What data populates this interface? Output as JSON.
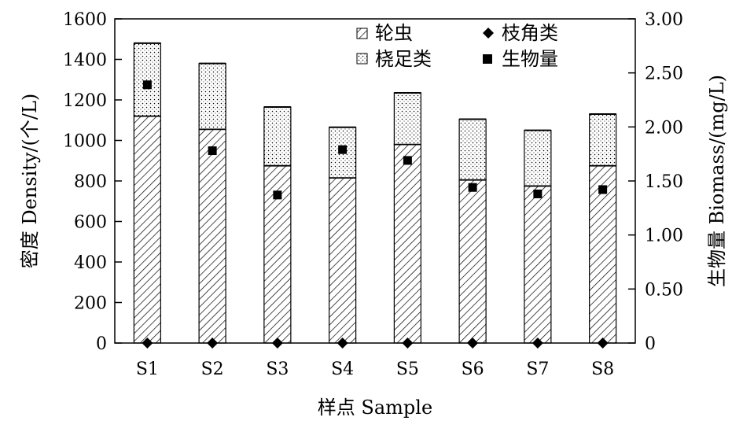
{
  "chart_data": {
    "type": "bar",
    "stacked": true,
    "categories": [
      "S1",
      "S2",
      "S3",
      "S4",
      "S5",
      "S6",
      "S7",
      "S8"
    ],
    "series": [
      {
        "name": "轮虫",
        "kind": "bar",
        "axis": "left",
        "pattern": "hatch",
        "values": [
          1120,
          1055,
          875,
          815,
          980,
          805,
          775,
          875
        ]
      },
      {
        "name": "桡足类",
        "kind": "bar",
        "axis": "left",
        "pattern": "dots",
        "values": [
          360,
          325,
          290,
          250,
          255,
          300,
          275,
          255
        ]
      },
      {
        "name": "枝角类",
        "kind": "marker",
        "marker": "diamond",
        "axis": "left",
        "values": [
          0,
          0,
          0,
          0,
          0,
          0,
          0,
          0
        ]
      },
      {
        "name": "生物量",
        "kind": "marker",
        "marker": "square",
        "axis": "right",
        "values": [
          2.39,
          1.78,
          1.37,
          1.79,
          1.69,
          1.44,
          1.38,
          1.42
        ]
      }
    ],
    "xlabel": "样点 Sample",
    "ylabel": "密度 Density/(个/L)",
    "y2label": "生物量 Biomass/(mg/L)",
    "ylim": [
      0,
      1600
    ],
    "y2lim": [
      0,
      3.0
    ],
    "yticks": [
      "0",
      "200",
      "400",
      "600",
      "800",
      "1000",
      "1200",
      "1400",
      "1600"
    ],
    "y2ticks": [
      "0",
      "0.50",
      "1.00",
      "1.50",
      "2.00",
      "2.50",
      "3.00"
    ],
    "grid": false,
    "legend_position": "top-right"
  }
}
